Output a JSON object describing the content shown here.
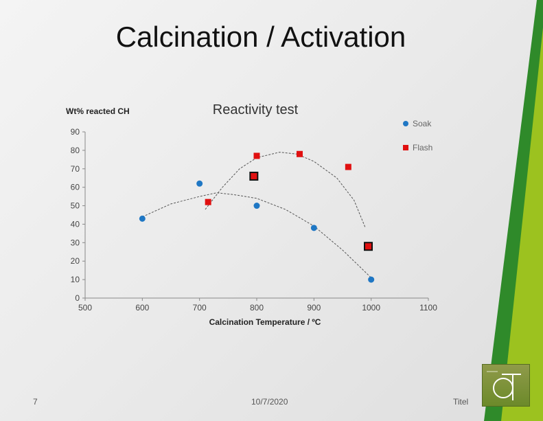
{
  "slide": {
    "title": "Calcination / Activation",
    "page_number": "7",
    "date": "10/7/2020",
    "footer_title": "Titel",
    "colors": {
      "green_dark": "#3a8f2a",
      "green_light": "#8bbf1f"
    }
  },
  "chart_data": {
    "type": "scatter",
    "title": "Reactivity test",
    "xlabel": "Calcination Temperature / ºC",
    "ylabel": "Wt% reacted CH",
    "xlim": [
      500,
      1100
    ],
    "ylim": [
      0,
      90
    ],
    "x_ticks": [
      500,
      600,
      700,
      800,
      900,
      1000,
      1100
    ],
    "y_ticks": [
      0,
      10,
      20,
      30,
      40,
      50,
      60,
      70,
      80,
      90
    ],
    "legend_position": "top-right",
    "grid": false,
    "series": [
      {
        "name": "Soak",
        "marker": "circle",
        "color": "#1f77c4",
        "points": [
          [
            600,
            43
          ],
          [
            700,
            62
          ],
          [
            800,
            50
          ],
          [
            900,
            38
          ],
          [
            1000,
            10
          ]
        ],
        "trend": [
          [
            600,
            44
          ],
          [
            650,
            51
          ],
          [
            700,
            55
          ],
          [
            730,
            57
          ],
          [
            760,
            56
          ],
          [
            800,
            54
          ],
          [
            850,
            48
          ],
          [
            900,
            39
          ],
          [
            950,
            26
          ],
          [
            1000,
            11
          ]
        ]
      },
      {
        "name": "Flash",
        "marker": "square",
        "color": "#e01010",
        "points": [
          [
            715,
            52
          ],
          [
            800,
            77
          ],
          [
            875,
            78
          ],
          [
            960,
            71
          ]
        ],
        "highlighted_points": [
          [
            795,
            66
          ],
          [
            995,
            28
          ]
        ],
        "trend": [
          [
            710,
            48
          ],
          [
            740,
            60
          ],
          [
            770,
            70
          ],
          [
            800,
            76
          ],
          [
            840,
            79
          ],
          [
            870,
            78
          ],
          [
            900,
            74
          ],
          [
            940,
            65
          ],
          [
            970,
            53
          ],
          [
            990,
            38
          ]
        ]
      }
    ]
  }
}
